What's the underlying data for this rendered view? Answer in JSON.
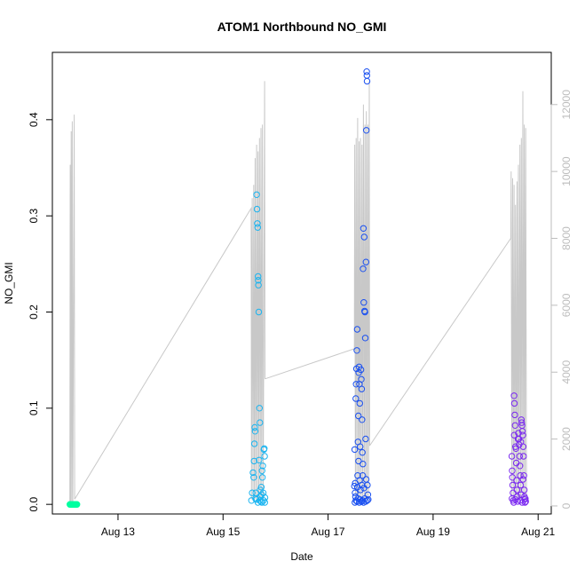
{
  "chart_data": {
    "type": "scatter",
    "title": "ATOM1 Northbound NO_GMI",
    "xlabel": "Date",
    "ylabel": "NO_GMI",
    "y2label": "",
    "x_range": [
      "2016-08-11T18:00",
      "2016-08-21T06:00"
    ],
    "x_ticks": [
      {
        "date": "2016-08-13",
        "label": "Aug 13"
      },
      {
        "date": "2016-08-15",
        "label": "Aug 15"
      },
      {
        "date": "2016-08-17",
        "label": "Aug 17"
      },
      {
        "date": "2016-08-19",
        "label": "Aug 19"
      },
      {
        "date": "2016-08-21",
        "label": "Aug 21"
      }
    ],
    "ylim": [
      -0.01,
      0.47
    ],
    "y_ticks": [
      0.0,
      0.1,
      0.2,
      0.3,
      0.4
    ],
    "y_tick_labels": [
      "0.0",
      "0.1",
      "0.2",
      "0.3",
      "0.4"
    ],
    "y2lim": [
      -240,
      13560
    ],
    "y2_ticks": [
      0,
      2000,
      4000,
      6000,
      8000,
      10000,
      12000
    ],
    "y2_tick_labels": [
      "0",
      "2000",
      "4000",
      "6000",
      "8000",
      "10000",
      "12000"
    ],
    "grid": false,
    "background_series": {
      "name": "",
      "axis": "right",
      "color": "#c8c8c8",
      "segments": [
        [
          [
            "2016-08-12T02:00",
            0
          ],
          [
            "2016-08-12T02:10",
            10200
          ],
          [
            "2016-08-12T02:20",
            0
          ],
          [
            "2016-08-12T02:35",
            11200
          ],
          [
            "2016-08-12T02:50",
            0
          ],
          [
            "2016-08-12T03:05",
            11500
          ],
          [
            "2016-08-12T03:20",
            0
          ],
          [
            "2016-08-12T04:00",
            11700
          ],
          [
            "2016-08-12T04:10",
            200
          ]
        ],
        [
          [
            "2016-08-12T04:10",
            200
          ],
          [
            "2016-08-15T12:50",
            8900
          ],
          [
            "2016-08-15T13:00",
            200
          ],
          [
            "2016-08-15T13:20",
            9200
          ],
          [
            "2016-08-15T13:40",
            200
          ],
          [
            "2016-08-15T14:00",
            9600
          ],
          [
            "2016-08-15T14:20",
            200
          ],
          [
            "2016-08-15T14:40",
            10400
          ],
          [
            "2016-08-15T15:00",
            200
          ],
          [
            "2016-08-15T15:20",
            10800
          ],
          [
            "2016-08-15T15:40",
            200
          ],
          [
            "2016-08-15T16:00",
            10600
          ],
          [
            "2016-08-15T16:20",
            200
          ],
          [
            "2016-08-15T16:40",
            11000
          ],
          [
            "2016-08-15T17:00",
            200
          ],
          [
            "2016-08-15T17:20",
            11300
          ],
          [
            "2016-08-15T17:40",
            200
          ],
          [
            "2016-08-15T18:00",
            11400
          ],
          [
            "2016-08-15T18:20",
            200
          ],
          [
            "2016-08-15T19:00",
            12700
          ],
          [
            "2016-08-15T19:10",
            3800
          ]
        ],
        [
          [
            "2016-08-15T19:10",
            3800
          ],
          [
            "2016-08-17T12:00",
            4700
          ],
          [
            "2016-08-17T12:10",
            10800
          ],
          [
            "2016-08-17T12:30",
            200
          ],
          [
            "2016-08-17T12:50",
            11000
          ],
          [
            "2016-08-17T13:10",
            200
          ],
          [
            "2016-08-17T13:30",
            11600
          ],
          [
            "2016-08-17T13:50",
            200
          ],
          [
            "2016-08-17T14:10",
            10900
          ],
          [
            "2016-08-17T14:30",
            200
          ],
          [
            "2016-08-17T14:50",
            11000
          ],
          [
            "2016-08-17T15:10",
            200
          ],
          [
            "2016-08-17T15:30",
            10800
          ],
          [
            "2016-08-17T15:50",
            200
          ],
          [
            "2016-08-17T16:10",
            12000
          ],
          [
            "2016-08-17T16:30",
            200
          ],
          [
            "2016-08-17T16:50",
            11400
          ],
          [
            "2016-08-17T17:10",
            200
          ],
          [
            "2016-08-17T17:30",
            11800
          ],
          [
            "2016-08-17T17:50",
            200
          ],
          [
            "2016-08-17T18:10",
            11400
          ],
          [
            "2016-08-17T18:30",
            200
          ],
          [
            "2016-08-17T18:50",
            12700
          ],
          [
            "2016-08-17T19:00",
            1800
          ]
        ],
        [
          [
            "2016-08-17T19:00",
            1800
          ],
          [
            "2016-08-20T11:30",
            8000
          ],
          [
            "2016-08-20T11:40",
            10000
          ],
          [
            "2016-08-20T12:00",
            200
          ],
          [
            "2016-08-20T12:20",
            9800
          ],
          [
            "2016-08-20T12:40",
            200
          ],
          [
            "2016-08-20T13:00",
            9600
          ],
          [
            "2016-08-20T13:20",
            200
          ],
          [
            "2016-08-20T13:40",
            9000
          ],
          [
            "2016-08-20T14:00",
            200
          ],
          [
            "2016-08-20T14:20",
            9700
          ],
          [
            "2016-08-20T14:40",
            200
          ],
          [
            "2016-08-20T15:00",
            10200
          ],
          [
            "2016-08-20T15:20",
            200
          ],
          [
            "2016-08-20T15:40",
            10800
          ],
          [
            "2016-08-20T16:00",
            200
          ],
          [
            "2016-08-20T16:20",
            11000
          ],
          [
            "2016-08-20T16:40",
            200
          ],
          [
            "2016-08-20T17:00",
            12400
          ],
          [
            "2016-08-20T17:20",
            200
          ],
          [
            "2016-08-20T17:40",
            11400
          ],
          [
            "2016-08-20T18:00",
            200
          ],
          [
            "2016-08-20T18:20",
            11300
          ],
          [
            "2016-08-20T18:40",
            300
          ]
        ]
      ]
    },
    "series": [
      {
        "name": "",
        "color": "#00ffa0",
        "marker": "open-circle",
        "points": [
          [
            "2016-08-12T02:00",
            0.0
          ],
          [
            "2016-08-12T02:15",
            0.0
          ],
          [
            "2016-08-12T02:30",
            0.0
          ],
          [
            "2016-08-12T02:45",
            0.0
          ],
          [
            "2016-08-12T03:00",
            0.0
          ],
          [
            "2016-08-12T03:15",
            0.0
          ],
          [
            "2016-08-12T03:30",
            0.0
          ],
          [
            "2016-08-12T03:45",
            0.0
          ],
          [
            "2016-08-12T04:00",
            0.0
          ],
          [
            "2016-08-12T04:15",
            0.0
          ],
          [
            "2016-08-12T04:30",
            0.0
          ],
          [
            "2016-08-12T04:45",
            0.0
          ],
          [
            "2016-08-12T05:00",
            0.0
          ],
          [
            "2016-08-12T05:15",
            0.0
          ]
        ]
      },
      {
        "name": "",
        "color": "#1ab4f0",
        "marker": "open-circle",
        "points": [
          [
            "2016-08-15T13:00",
            0.004
          ],
          [
            "2016-08-15T13:20",
            0.012
          ],
          [
            "2016-08-15T13:40",
            0.033
          ],
          [
            "2016-08-15T14:00",
            0.028
          ],
          [
            "2016-08-15T14:10",
            0.045
          ],
          [
            "2016-08-15T14:20",
            0.063
          ],
          [
            "2016-08-15T14:30",
            0.08
          ],
          [
            "2016-08-15T14:40",
            0.076
          ],
          [
            "2016-08-15T15:00",
            0.012
          ],
          [
            "2016-08-15T15:10",
            0.005
          ],
          [
            "2016-08-15T15:20",
            0.322
          ],
          [
            "2016-08-15T15:30",
            0.307
          ],
          [
            "2016-08-15T15:40",
            0.292
          ],
          [
            "2016-08-15T15:50",
            0.288
          ],
          [
            "2016-08-15T16:00",
            0.237
          ],
          [
            "2016-08-15T16:05",
            0.233
          ],
          [
            "2016-08-15T16:10",
            0.228
          ],
          [
            "2016-08-15T16:20",
            0.2
          ],
          [
            "2016-08-15T16:30",
            0.046
          ],
          [
            "2016-08-15T16:40",
            0.1
          ],
          [
            "2016-08-15T16:50",
            0.085
          ],
          [
            "2016-08-15T17:00",
            0.015
          ],
          [
            "2016-08-15T17:10",
            0.008
          ],
          [
            "2016-08-15T17:20",
            0.003
          ],
          [
            "2016-08-15T17:30",
            0.018
          ],
          [
            "2016-08-15T17:40",
            0.01
          ],
          [
            "2016-08-15T17:50",
            0.035
          ],
          [
            "2016-08-15T18:00",
            0.028
          ],
          [
            "2016-08-15T18:10",
            0.04
          ],
          [
            "2016-08-15T18:20",
            0.012
          ],
          [
            "2016-08-15T18:30",
            0.004
          ],
          [
            "2016-08-15T18:40",
            0.057
          ],
          [
            "2016-08-15T18:50",
            0.058
          ],
          [
            "2016-08-15T19:00",
            0.05
          ],
          [
            "2016-08-15T19:05",
            0.002
          ],
          [
            "2016-08-15T19:10",
            0.007
          ],
          [
            "2016-08-15T14:50",
            0.006
          ],
          [
            "2016-08-15T15:55",
            0.002
          ],
          [
            "2016-08-15T16:45",
            0.004
          ],
          [
            "2016-08-15T17:45",
            0.002
          ]
        ]
      },
      {
        "name": "",
        "color": "#1a50f0",
        "marker": "open-circle",
        "points": [
          [
            "2016-08-17T12:00",
            0.019
          ],
          [
            "2016-08-17T12:10",
            0.057
          ],
          [
            "2016-08-17T12:20",
            0.012
          ],
          [
            "2016-08-17T12:30",
            0.008
          ],
          [
            "2016-08-17T12:40",
            0.11
          ],
          [
            "2016-08-17T12:50",
            0.125
          ],
          [
            "2016-08-17T13:00",
            0.141
          ],
          [
            "2016-08-17T13:10",
            0.16
          ],
          [
            "2016-08-17T13:20",
            0.182
          ],
          [
            "2016-08-17T13:30",
            0.03
          ],
          [
            "2016-08-17T13:40",
            0.065
          ],
          [
            "2016-08-17T13:50",
            0.092
          ],
          [
            "2016-08-17T14:00",
            0.137
          ],
          [
            "2016-08-17T14:10",
            0.143
          ],
          [
            "2016-08-17T14:20",
            0.125
          ],
          [
            "2016-08-17T14:30",
            0.105
          ],
          [
            "2016-08-17T14:40",
            0.06
          ],
          [
            "2016-08-17T14:50",
            0.015
          ],
          [
            "2016-08-17T15:00",
            0.14
          ],
          [
            "2016-08-17T15:10",
            0.13
          ],
          [
            "2016-08-17T15:20",
            0.12
          ],
          [
            "2016-08-17T15:30",
            0.088
          ],
          [
            "2016-08-17T15:40",
            0.054
          ],
          [
            "2016-08-17T15:50",
            0.03
          ],
          [
            "2016-08-17T16:00",
            0.245
          ],
          [
            "2016-08-17T16:10",
            0.287
          ],
          [
            "2016-08-17T16:20",
            0.21
          ],
          [
            "2016-08-17T16:30",
            0.278
          ],
          [
            "2016-08-17T16:40",
            0.201
          ],
          [
            "2016-08-17T16:50",
            0.2
          ],
          [
            "2016-08-17T17:00",
            0.173
          ],
          [
            "2016-08-17T17:10",
            0.068
          ],
          [
            "2016-08-17T17:20",
            0.252
          ],
          [
            "2016-08-17T17:30",
            0.389
          ],
          [
            "2016-08-17T17:40",
            0.45
          ],
          [
            "2016-08-17T17:45",
            0.446
          ],
          [
            "2016-08-17T17:50",
            0.44
          ],
          [
            "2016-08-17T18:00",
            0.02
          ],
          [
            "2016-08-17T18:10",
            0.01
          ],
          [
            "2016-08-17T18:20",
            0.005
          ],
          [
            "2016-08-17T12:15",
            0.002
          ],
          [
            "2016-08-17T12:45",
            0.004
          ],
          [
            "2016-08-17T13:15",
            0.003
          ],
          [
            "2016-08-17T13:45",
            0.006
          ],
          [
            "2016-08-17T14:15",
            0.002
          ],
          [
            "2016-08-17T14:45",
            0.005
          ],
          [
            "2016-08-17T15:15",
            0.003
          ],
          [
            "2016-08-17T15:45",
            0.004
          ],
          [
            "2016-08-17T16:15",
            0.002
          ],
          [
            "2016-08-17T16:45",
            0.006
          ],
          [
            "2016-08-17T17:15",
            0.003
          ],
          [
            "2016-08-17T17:55",
            0.004
          ],
          [
            "2016-08-17T12:25",
            0.022
          ],
          [
            "2016-08-17T13:25",
            0.018
          ],
          [
            "2016-08-17T14:25",
            0.025
          ],
          [
            "2016-08-17T15:25",
            0.02
          ],
          [
            "2016-08-17T16:25",
            0.017
          ],
          [
            "2016-08-17T17:25",
            0.026
          ],
          [
            "2016-08-17T13:55",
            0.045
          ],
          [
            "2016-08-17T15:55",
            0.042
          ]
        ]
      },
      {
        "name": "",
        "color": "#7a28f0",
        "marker": "open-circle",
        "points": [
          [
            "2016-08-20T12:00",
            0.05
          ],
          [
            "2016-08-20T12:10",
            0.035
          ],
          [
            "2016-08-20T12:20",
            0.02
          ],
          [
            "2016-08-20T12:30",
            0.012
          ],
          [
            "2016-08-20T12:40",
            0.004
          ],
          [
            "2016-08-20T13:00",
            0.113
          ],
          [
            "2016-08-20T13:10",
            0.105
          ],
          [
            "2016-08-20T13:20",
            0.093
          ],
          [
            "2016-08-20T13:30",
            0.082
          ],
          [
            "2016-08-20T13:40",
            0.06
          ],
          [
            "2016-08-20T13:50",
            0.058
          ],
          [
            "2016-08-20T14:00",
            0.043
          ],
          [
            "2016-08-20T14:10",
            0.025
          ],
          [
            "2016-08-20T14:20",
            0.015
          ],
          [
            "2016-08-20T14:30",
            0.008
          ],
          [
            "2016-08-20T15:00",
            0.074
          ],
          [
            "2016-08-20T15:10",
            0.068
          ],
          [
            "2016-08-20T15:20",
            0.062
          ],
          [
            "2016-08-20T15:30",
            0.05
          ],
          [
            "2016-08-20T15:40",
            0.04
          ],
          [
            "2016-08-20T15:50",
            0.03
          ],
          [
            "2016-08-20T16:00",
            0.02
          ],
          [
            "2016-08-20T16:10",
            0.01
          ],
          [
            "2016-08-20T16:20",
            0.088
          ],
          [
            "2016-08-20T16:30",
            0.085
          ],
          [
            "2016-08-20T16:40",
            0.082
          ],
          [
            "2016-08-20T16:50",
            0.076
          ],
          [
            "2016-08-20T17:00",
            0.072
          ],
          [
            "2016-08-20T17:10",
            0.06
          ],
          [
            "2016-08-20T17:20",
            0.05
          ],
          [
            "2016-08-20T17:30",
            0.03
          ],
          [
            "2016-08-20T17:40",
            0.015
          ],
          [
            "2016-08-20T17:50",
            0.005
          ],
          [
            "2016-08-20T18:00",
            0.002
          ],
          [
            "2016-08-20T18:10",
            0.006
          ],
          [
            "2016-08-20T18:20",
            0.003
          ],
          [
            "2016-08-20T12:05",
            0.006
          ],
          [
            "2016-08-20T12:50",
            0.002
          ],
          [
            "2016-08-20T13:45",
            0.005
          ],
          [
            "2016-08-20T14:40",
            0.003
          ],
          [
            "2016-08-20T15:45",
            0.004
          ],
          [
            "2016-08-20T16:45",
            0.002
          ],
          [
            "2016-08-20T17:45",
            0.008
          ],
          [
            "2016-08-20T14:50",
            0.068
          ],
          [
            "2016-08-20T16:05",
            0.065
          ],
          [
            "2016-08-20T17:05",
            0.026
          ],
          [
            "2016-08-20T13:05",
            0.072
          ],
          [
            "2016-08-20T12:15",
            0.028
          ]
        ]
      }
    ]
  }
}
